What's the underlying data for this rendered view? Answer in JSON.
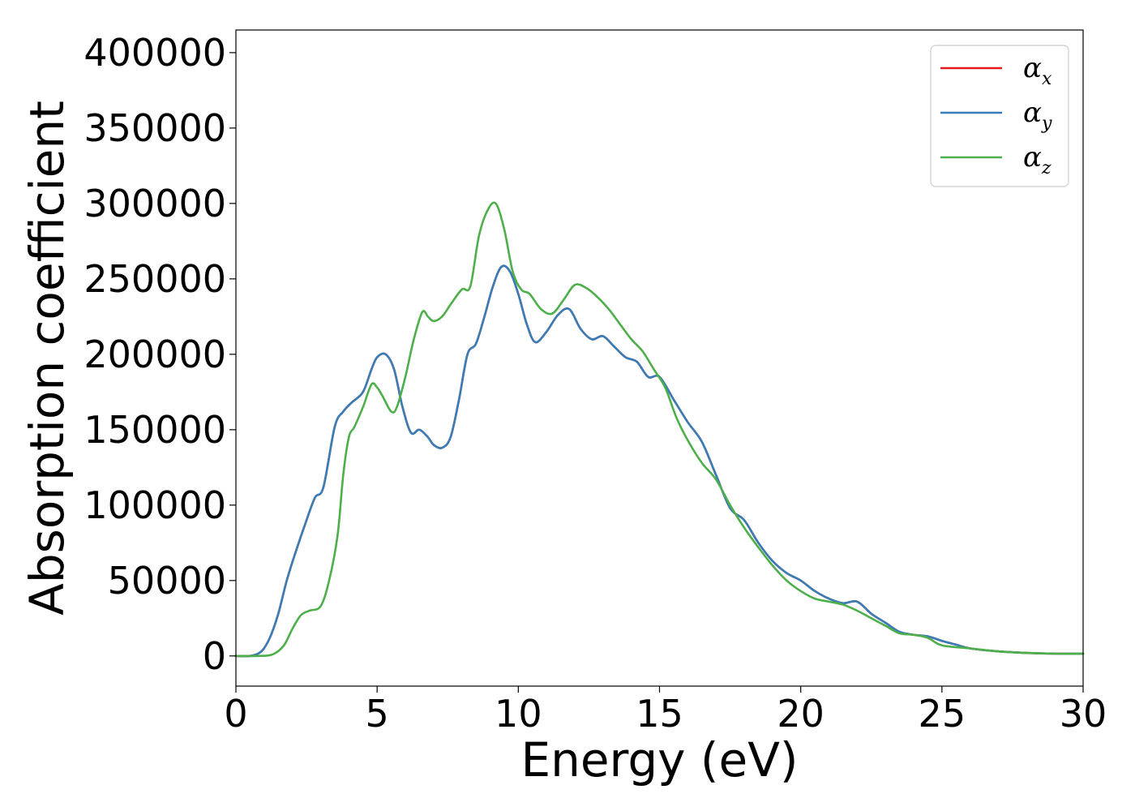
{
  "chart_data": {
    "type": "line",
    "xlabel": "Energy (eV)",
    "ylabel": "Absorption coefficient",
    "xlim": [
      0,
      30
    ],
    "ylim": [
      -20000,
      415000
    ],
    "xticks": [
      0,
      5,
      10,
      15,
      20,
      25,
      30
    ],
    "yticks": [
      0,
      50000,
      100000,
      150000,
      200000,
      250000,
      300000,
      350000,
      400000
    ],
    "grid": false,
    "legend_position": "top-right",
    "series": [
      {
        "name": "αx",
        "legend_symbol": "α",
        "legend_sub": "x",
        "color": "#e41a1c",
        "x": [
          0,
          0.5,
          0.9,
          1.2,
          1.5,
          1.8,
          2.1,
          2.5,
          2.8,
          3.1,
          3.5,
          3.8,
          4.1,
          4.5,
          4.8,
          5.0,
          5.3,
          5.6,
          5.9,
          6.2,
          6.5,
          6.8,
          7.0,
          7.3,
          7.6,
          7.9,
          8.2,
          8.5,
          8.8,
          9.1,
          9.4,
          9.7,
          10.0,
          10.3,
          10.6,
          11.0,
          11.4,
          11.8,
          12.2,
          12.6,
          13.0,
          13.4,
          13.8,
          14.2,
          14.6,
          15.0,
          15.5,
          16.0,
          16.5,
          17.0,
          17.5,
          18.0,
          18.5,
          19.0,
          19.5,
          20.0,
          20.5,
          21.0,
          21.5,
          22.0,
          22.5,
          23.0,
          23.5,
          24.0,
          24.5,
          25.0,
          25.5,
          26.0,
          27.0,
          28.0,
          29.0,
          30.0
        ],
        "values": [
          0,
          0,
          3000,
          12000,
          28000,
          50000,
          68000,
          90000,
          105000,
          112000,
          152000,
          162000,
          168000,
          175000,
          190000,
          198000,
          200000,
          190000,
          165000,
          148000,
          150000,
          145000,
          140000,
          138000,
          145000,
          170000,
          200000,
          207000,
          225000,
          245000,
          258000,
          255000,
          240000,
          220000,
          208000,
          215000,
          226000,
          230000,
          217000,
          210000,
          212000,
          205000,
          198000,
          195000,
          185000,
          185000,
          170000,
          155000,
          142000,
          120000,
          98000,
          90000,
          75000,
          63000,
          55000,
          50000,
          43000,
          38000,
          35000,
          36000,
          28000,
          22000,
          16000,
          14000,
          13000,
          10000,
          7500,
          5000,
          3000,
          2000,
          1500,
          1500
        ]
      },
      {
        "name": "αy",
        "legend_symbol": "α",
        "legend_sub": "y",
        "color": "#377eb8",
        "x": [
          0,
          0.5,
          0.9,
          1.2,
          1.5,
          1.8,
          2.1,
          2.5,
          2.8,
          3.1,
          3.5,
          3.8,
          4.1,
          4.5,
          4.8,
          5.0,
          5.3,
          5.6,
          5.9,
          6.2,
          6.5,
          6.8,
          7.0,
          7.3,
          7.6,
          7.9,
          8.2,
          8.5,
          8.8,
          9.1,
          9.4,
          9.7,
          10.0,
          10.3,
          10.6,
          11.0,
          11.4,
          11.8,
          12.2,
          12.6,
          13.0,
          13.4,
          13.8,
          14.2,
          14.6,
          15.0,
          15.5,
          16.0,
          16.5,
          17.0,
          17.5,
          18.0,
          18.5,
          19.0,
          19.5,
          20.0,
          20.5,
          21.0,
          21.5,
          22.0,
          22.5,
          23.0,
          23.5,
          24.0,
          24.5,
          25.0,
          25.5,
          26.0,
          27.0,
          28.0,
          29.0,
          30.0
        ],
        "values": [
          0,
          0,
          3000,
          12000,
          28000,
          50000,
          68000,
          90000,
          105000,
          112000,
          152000,
          162000,
          168000,
          175000,
          190000,
          198000,
          200000,
          190000,
          165000,
          148000,
          150000,
          145000,
          140000,
          138000,
          145000,
          170000,
          200000,
          207000,
          225000,
          245000,
          258000,
          255000,
          240000,
          220000,
          208000,
          215000,
          226000,
          230000,
          217000,
          210000,
          212000,
          205000,
          198000,
          195000,
          185000,
          185000,
          170000,
          155000,
          142000,
          120000,
          98000,
          90000,
          75000,
          63000,
          55000,
          50000,
          43000,
          38000,
          35000,
          36000,
          28000,
          22000,
          16000,
          14000,
          13000,
          10000,
          7500,
          5000,
          3000,
          2000,
          1500,
          1500
        ]
      },
      {
        "name": "αz",
        "legend_symbol": "α",
        "legend_sub": "z",
        "color": "#4daf4a",
        "x": [
          0,
          0.8,
          1.3,
          1.7,
          2.0,
          2.3,
          2.6,
          3.0,
          3.3,
          3.6,
          3.8,
          4.0,
          4.2,
          4.5,
          4.8,
          5.0,
          5.2,
          5.5,
          5.7,
          6.0,
          6.3,
          6.6,
          6.8,
          7.0,
          7.3,
          7.6,
          8.0,
          8.3,
          8.6,
          8.9,
          9.2,
          9.5,
          9.8,
          10.1,
          10.4,
          10.8,
          11.2,
          11.6,
          12.0,
          12.4,
          12.8,
          13.2,
          13.6,
          14.0,
          14.4,
          14.8,
          15.2,
          15.6,
          16.0,
          16.5,
          17.0,
          17.5,
          18.0,
          18.5,
          19.0,
          19.5,
          20.0,
          20.5,
          21.0,
          21.5,
          22.0,
          22.5,
          23.0,
          23.5,
          24.0,
          24.5,
          25.0,
          26.0,
          27.0,
          28.0,
          29.0,
          30.0
        ],
        "values": [
          0,
          0,
          1000,
          7000,
          18000,
          27000,
          30000,
          33000,
          50000,
          80000,
          120000,
          145000,
          152000,
          165000,
          180000,
          178000,
          172000,
          162000,
          165000,
          185000,
          210000,
          228000,
          225000,
          222000,
          225000,
          233000,
          243000,
          245000,
          278000,
          295000,
          300000,
          283000,
          255000,
          243000,
          240000,
          230000,
          227000,
          236000,
          246000,
          244000,
          238000,
          230000,
          220000,
          210000,
          202000,
          190000,
          178000,
          158000,
          143000,
          128000,
          117000,
          100000,
          85000,
          72000,
          60000,
          50000,
          43000,
          38000,
          36000,
          34000,
          30000,
          25000,
          20000,
          15000,
          14000,
          12000,
          7000,
          5000,
          3000,
          2000,
          1500,
          1500
        ]
      }
    ]
  }
}
